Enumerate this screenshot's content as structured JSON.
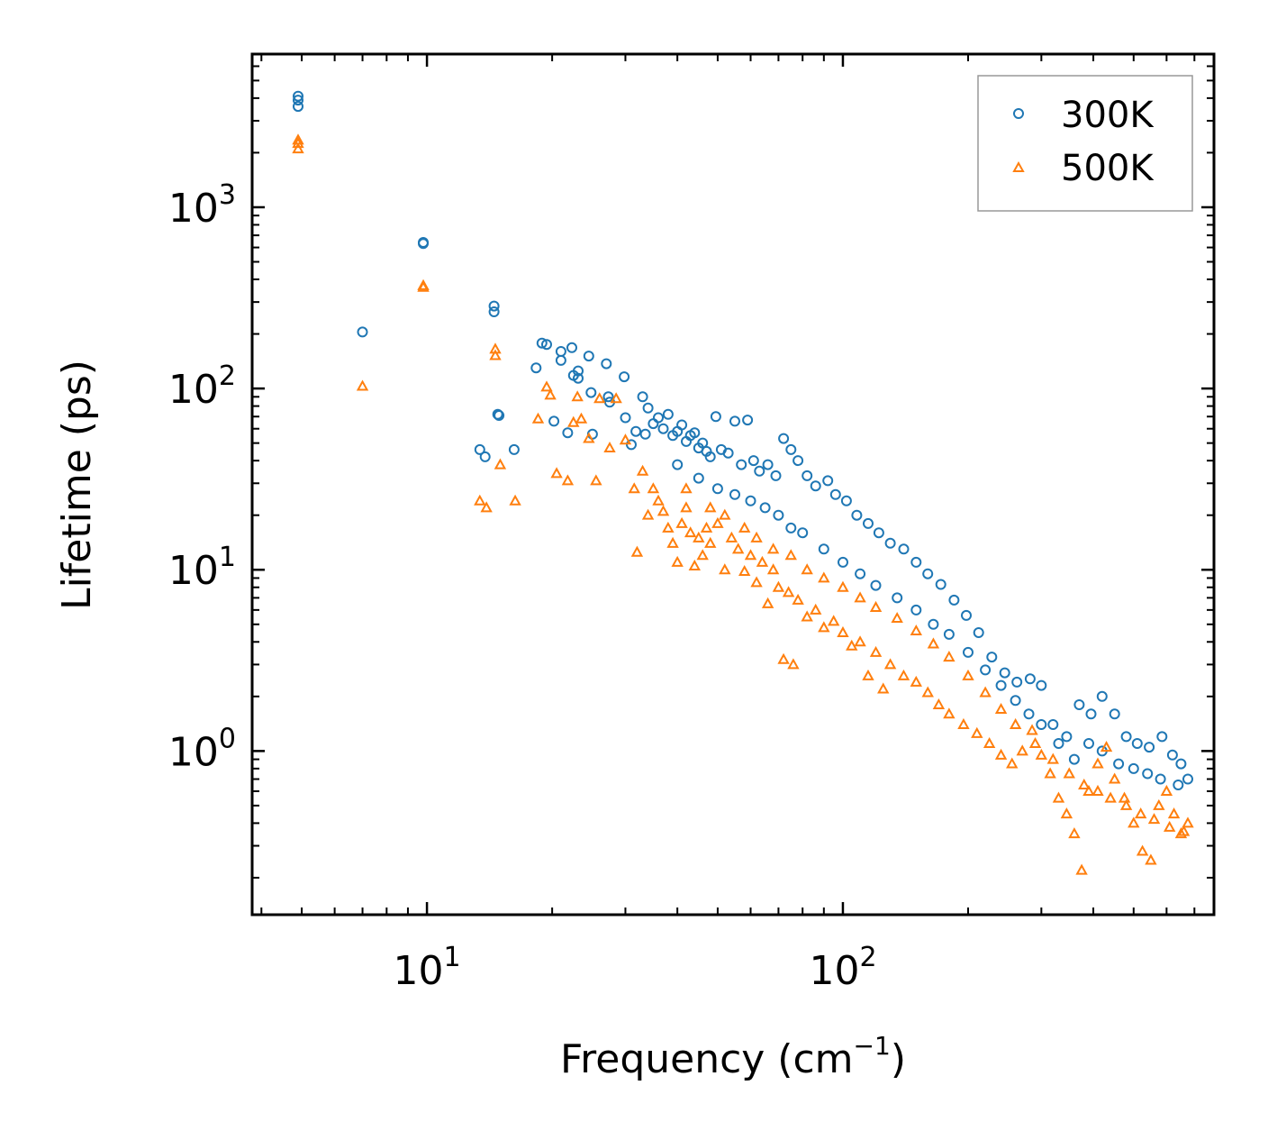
{
  "chart_data": {
    "type": "scatter",
    "title": "",
    "xlabel": "Frequency (cm",
    "xlabel_sup": "−1",
    "xlabel_suffix": ")",
    "ylabel": "Lifetime (ps)",
    "xscale": "log",
    "yscale": "log",
    "xlim": [
      3.8,
      780
    ],
    "ylim": [
      0.125,
      7000
    ],
    "x_ticks": [
      {
        "base": "10",
        "exp": "1",
        "value": 10
      },
      {
        "base": "10",
        "exp": "2",
        "value": 100
      }
    ],
    "y_ticks": [
      {
        "base": "10",
        "exp": "0",
        "value": 1
      },
      {
        "base": "10",
        "exp": "1",
        "value": 10
      },
      {
        "base": "10",
        "exp": "2",
        "value": 100
      },
      {
        "base": "10",
        "exp": "3",
        "value": 1000
      }
    ],
    "legend_position": "top-right",
    "series": [
      {
        "name": "300K",
        "marker": "circle",
        "color": "#1f77b4",
        "points": [
          [
            4.9,
            4100
          ],
          [
            4.9,
            3900
          ],
          [
            4.9,
            3600
          ],
          [
            7.0,
            205
          ],
          [
            9.8,
            640
          ],
          [
            9.8,
            630
          ],
          [
            13.4,
            46
          ],
          [
            13.8,
            42
          ],
          [
            14.5,
            285
          ],
          [
            14.5,
            265
          ],
          [
            14.8,
            72
          ],
          [
            14.9,
            71
          ],
          [
            16.2,
            46
          ],
          [
            18.3,
            130
          ],
          [
            18.9,
            178
          ],
          [
            19.4,
            175
          ],
          [
            20.2,
            66
          ],
          [
            21.0,
            160
          ],
          [
            21.0,
            143
          ],
          [
            21.8,
            57
          ],
          [
            22.3,
            168
          ],
          [
            22.5,
            118
          ],
          [
            23.1,
            125
          ],
          [
            23.1,
            114
          ],
          [
            24.5,
            151
          ],
          [
            24.8,
            95
          ],
          [
            25.0,
            56
          ],
          [
            27.0,
            137
          ],
          [
            27.3,
            90
          ],
          [
            27.5,
            84
          ],
          [
            29.8,
            116
          ],
          [
            30.0,
            69
          ],
          [
            31.0,
            49
          ],
          [
            31.8,
            58
          ],
          [
            33.0,
            90
          ],
          [
            33.5,
            56
          ],
          [
            34.0,
            78
          ],
          [
            35.0,
            64
          ],
          [
            36.0,
            69
          ],
          [
            37.0,
            60
          ],
          [
            38.0,
            72
          ],
          [
            39.0,
            55
          ],
          [
            40.0,
            58
          ],
          [
            41.0,
            63
          ],
          [
            42.0,
            51
          ],
          [
            43.0,
            55
          ],
          [
            44.0,
            57
          ],
          [
            45.0,
            47
          ],
          [
            46.0,
            50
          ],
          [
            47.0,
            45
          ],
          [
            48.0,
            42
          ],
          [
            49.5,
            70
          ],
          [
            51.0,
            46
          ],
          [
            53.0,
            44
          ],
          [
            55.0,
            66
          ],
          [
            57.0,
            38
          ],
          [
            59.0,
            67
          ],
          [
            61.0,
            40
          ],
          [
            63.0,
            35
          ],
          [
            66.0,
            38
          ],
          [
            69.0,
            33
          ],
          [
            72.0,
            53
          ],
          [
            75.0,
            46
          ],
          [
            78.0,
            40
          ],
          [
            82.0,
            33
          ],
          [
            86.0,
            29
          ],
          [
            92.0,
            31
          ],
          [
            96.0,
            26
          ],
          [
            102.0,
            24
          ],
          [
            108.0,
            20
          ],
          [
            115.0,
            18
          ],
          [
            122.0,
            16
          ],
          [
            130.0,
            14
          ],
          [
            140.0,
            13
          ],
          [
            150.0,
            11
          ],
          [
            160.0,
            9.5
          ],
          [
            172.0,
            8.3
          ],
          [
            185.0,
            6.8
          ],
          [
            198.0,
            5.6
          ],
          [
            212.0,
            4.5
          ],
          [
            228.0,
            3.3
          ],
          [
            245.0,
            2.7
          ],
          [
            262.0,
            2.4
          ],
          [
            282.0,
            2.5
          ],
          [
            300.0,
            2.3
          ],
          [
            320.0,
            1.4
          ],
          [
            345.0,
            1.2
          ],
          [
            370.0,
            1.8
          ],
          [
            395.0,
            1.6
          ],
          [
            420.0,
            2.0
          ],
          [
            450.0,
            1.6
          ],
          [
            480.0,
            1.2
          ],
          [
            510.0,
            1.1
          ],
          [
            545.0,
            1.05
          ],
          [
            585.0,
            1.2
          ],
          [
            620.0,
            0.95
          ],
          [
            650.0,
            0.85
          ],
          [
            675.0,
            0.7
          ],
          [
            40.0,
            38
          ],
          [
            45.0,
            32
          ],
          [
            50.0,
            28
          ],
          [
            55.0,
            26
          ],
          [
            60.0,
            24
          ],
          [
            65.0,
            22
          ],
          [
            70.0,
            20
          ],
          [
            75.0,
            17
          ],
          [
            80.0,
            16
          ],
          [
            90.0,
            13
          ],
          [
            100.0,
            11
          ],
          [
            110.0,
            9.5
          ],
          [
            120.0,
            8.2
          ],
          [
            135.0,
            7.0
          ],
          [
            150.0,
            6.0
          ],
          [
            165.0,
            5.0
          ],
          [
            180.0,
            4.4
          ],
          [
            200.0,
            3.5
          ],
          [
            220.0,
            2.8
          ],
          [
            240.0,
            2.3
          ],
          [
            260.0,
            1.9
          ],
          [
            280.0,
            1.6
          ],
          [
            300.0,
            1.4
          ],
          [
            330.0,
            1.1
          ],
          [
            360.0,
            0.9
          ],
          [
            390.0,
            1.1
          ],
          [
            420.0,
            1.0
          ],
          [
            460.0,
            0.85
          ],
          [
            500.0,
            0.8
          ],
          [
            540.0,
            0.75
          ],
          [
            580.0,
            0.7
          ],
          [
            640.0,
            0.65
          ]
        ]
      },
      {
        "name": "500K",
        "marker": "triangle",
        "color": "#ff7f0e",
        "points": [
          [
            4.9,
            2350
          ],
          [
            4.9,
            2250
          ],
          [
            4.9,
            2100
          ],
          [
            7.0,
            103
          ],
          [
            9.8,
            370
          ],
          [
            9.8,
            362
          ],
          [
            13.4,
            24
          ],
          [
            13.9,
            22
          ],
          [
            14.6,
            165
          ],
          [
            14.6,
            152
          ],
          [
            15.0,
            38
          ],
          [
            16.3,
            24
          ],
          [
            18.5,
            68
          ],
          [
            19.4,
            102
          ],
          [
            19.8,
            92
          ],
          [
            20.5,
            34
          ],
          [
            21.8,
            31
          ],
          [
            22.5,
            65
          ],
          [
            23.0,
            90
          ],
          [
            23.5,
            68
          ],
          [
            24.5,
            53
          ],
          [
            25.5,
            31
          ],
          [
            26.0,
            88
          ],
          [
            27.5,
            47
          ],
          [
            28.5,
            88
          ],
          [
            30.0,
            52
          ],
          [
            31.5,
            28
          ],
          [
            32.0,
            12.5
          ],
          [
            33.0,
            35
          ],
          [
            34.0,
            20
          ],
          [
            35.0,
            28
          ],
          [
            36.0,
            24
          ],
          [
            37.0,
            21
          ],
          [
            38.0,
            17
          ],
          [
            39.0,
            14
          ],
          [
            40.0,
            11
          ],
          [
            41.0,
            18
          ],
          [
            42.0,
            22
          ],
          [
            43.0,
            16
          ],
          [
            44.0,
            10.5
          ],
          [
            45.0,
            15
          ],
          [
            46.0,
            12
          ],
          [
            47.0,
            17
          ],
          [
            48.0,
            14
          ],
          [
            50.0,
            18
          ],
          [
            52.0,
            10
          ],
          [
            54.0,
            15
          ],
          [
            56.0,
            13
          ],
          [
            58.0,
            9.8
          ],
          [
            60.0,
            12
          ],
          [
            62.0,
            8.5
          ],
          [
            64.0,
            11
          ],
          [
            66.0,
            6.5
          ],
          [
            68.0,
            10
          ],
          [
            70.0,
            8
          ],
          [
            72.0,
            3.2
          ],
          [
            74.0,
            7.5
          ],
          [
            76.0,
            3.0
          ],
          [
            78.0,
            6.8
          ],
          [
            82.0,
            5.5
          ],
          [
            86.0,
            6.0
          ],
          [
            90.0,
            4.8
          ],
          [
            95.0,
            5.2
          ],
          [
            100.0,
            4.5
          ],
          [
            105.0,
            3.8
          ],
          [
            110.0,
            4.0
          ],
          [
            115.0,
            2.6
          ],
          [
            120.0,
            3.5
          ],
          [
            125.0,
            2.2
          ],
          [
            130.0,
            3.0
          ],
          [
            140.0,
            2.6
          ],
          [
            150.0,
            2.4
          ],
          [
            160.0,
            2.1
          ],
          [
            170.0,
            1.8
          ],
          [
            180.0,
            1.6
          ],
          [
            195.0,
            1.4
          ],
          [
            210.0,
            1.25
          ],
          [
            225.0,
            1.1
          ],
          [
            240.0,
            0.95
          ],
          [
            255.0,
            0.85
          ],
          [
            270.0,
            1.0
          ],
          [
            285.0,
            1.3
          ],
          [
            300.0,
            0.95
          ],
          [
            315.0,
            0.75
          ],
          [
            330.0,
            0.55
          ],
          [
            345.0,
            0.45
          ],
          [
            360.0,
            0.35
          ],
          [
            375.0,
            0.22
          ],
          [
            390.0,
            0.6
          ],
          [
            410.0,
            0.85
          ],
          [
            430.0,
            1.05
          ],
          [
            450.0,
            0.7
          ],
          [
            475.0,
            0.55
          ],
          [
            500.0,
            0.4
          ],
          [
            525.0,
            0.28
          ],
          [
            550.0,
            0.25
          ],
          [
            575.0,
            0.5
          ],
          [
            600.0,
            0.6
          ],
          [
            625.0,
            0.45
          ],
          [
            650.0,
            0.35
          ],
          [
            675.0,
            0.4
          ],
          [
            42.0,
            28
          ],
          [
            48.0,
            22
          ],
          [
            52.0,
            20
          ],
          [
            58.0,
            17
          ],
          [
            62.0,
            15
          ],
          [
            68.0,
            13
          ],
          [
            75.0,
            12
          ],
          [
            82.0,
            10
          ],
          [
            90.0,
            9
          ],
          [
            100.0,
            8
          ],
          [
            110.0,
            7
          ],
          [
            120.0,
            6.2
          ],
          [
            135.0,
            5.4
          ],
          [
            150.0,
            4.6
          ],
          [
            165.0,
            3.9
          ],
          [
            180.0,
            3.3
          ],
          [
            200.0,
            2.6
          ],
          [
            220.0,
            2.1
          ],
          [
            240.0,
            1.7
          ],
          [
            260.0,
            1.4
          ],
          [
            290.0,
            1.1
          ],
          [
            320.0,
            0.9
          ],
          [
            350.0,
            0.75
          ],
          [
            380.0,
            0.65
          ],
          [
            410.0,
            0.6
          ],
          [
            440.0,
            0.55
          ],
          [
            480.0,
            0.5
          ],
          [
            520.0,
            0.45
          ],
          [
            560.0,
            0.42
          ],
          [
            610.0,
            0.38
          ],
          [
            660.0,
            0.36
          ]
        ]
      }
    ]
  }
}
